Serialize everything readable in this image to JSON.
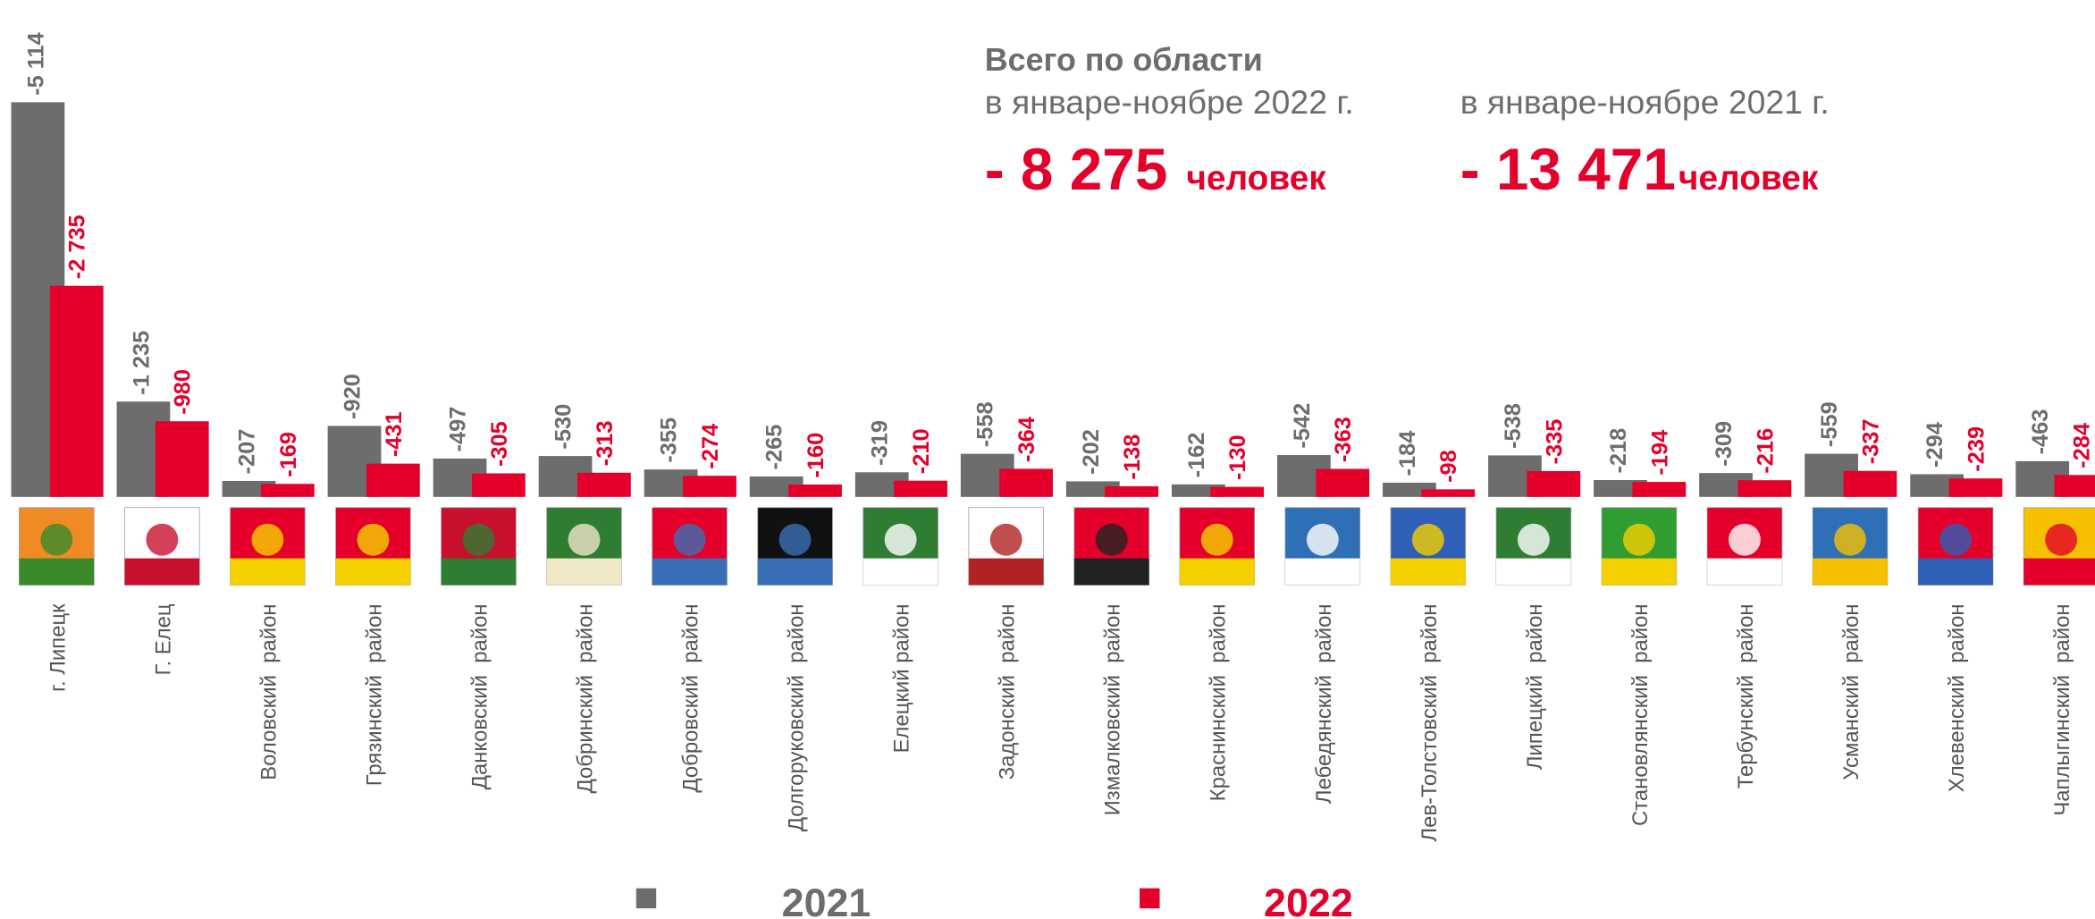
{
  "chart_data": {
    "type": "bar",
    "title": "Всего по области",
    "totals": [
      {
        "period": "в январе-ноябре 2022 г.",
        "value": "- 8 275",
        "unit": "человек"
      },
      {
        "period": "в январе-ноябре 2021 г.",
        "value": "- 13 471",
        "unit": "человек"
      }
    ],
    "categories": [
      "г. Липецк",
      "Г. Елец",
      "Воловский  район",
      "Грязинский  район",
      "Данковский  район",
      "Добринский  район",
      "Добровский  район",
      "Долгоруковский  район",
      "Елецкий район",
      "Задонский  район",
      "Измалковский  район",
      "Краснинский  район",
      "Лебедянский  район",
      "Лев-Толстовский  район",
      "Липецкий  район",
      "Становлянский  район",
      "Тербунский  район",
      "Усманский  район",
      "Хлевенский  район",
      "Чаплыгинский  район"
    ],
    "series": [
      {
        "name": "2021",
        "color": "#6d6d6d",
        "values": [
          -5114,
          -1235,
          -207,
          -920,
          -497,
          -530,
          -355,
          -265,
          -319,
          -558,
          -202,
          -162,
          -542,
          -184,
          -538,
          -218,
          -309,
          -559,
          -294,
          -463
        ],
        "value_labels": [
          "-5 114",
          "-1 235",
          "-207",
          "-920",
          "-497",
          "-530",
          "-355",
          "-265",
          "-319",
          "-558",
          "-202",
          "-162",
          "-542",
          "-184",
          "-538",
          "-218",
          "-309",
          "-559",
          "-294",
          "-463"
        ]
      },
      {
        "name": "2022",
        "color": "#e4002b",
        "values": [
          -2735,
          -980,
          -169,
          -431,
          -305,
          -313,
          -274,
          -160,
          -210,
          -364,
          -138,
          -130,
          -363,
          -98,
          -335,
          -194,
          -216,
          -337,
          -239,
          -284
        ],
        "value_labels": [
          "-2 735",
          "-980",
          "-169",
          "-431",
          "-305",
          "-313",
          "-274",
          "-160",
          "-210",
          "-364",
          "-138",
          "-130",
          "-363",
          "-98",
          "-335",
          "-194",
          "-216",
          "-337",
          "-239",
          "-284"
        ]
      }
    ],
    "ylim": [
      0,
      -5400
    ]
  }
}
